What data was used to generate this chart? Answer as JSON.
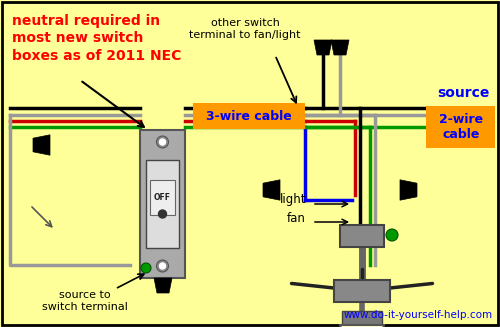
{
  "bg_color": "#FFFF99",
  "title_text": "neutral required in\nmost new switch\nboxes as of 2011 NEC",
  "title_color": "#FF0000",
  "source_color": "#0000FF",
  "label_3wire": "3-wire cable",
  "label_2wire": "2-wire\ncable",
  "orange_color": "#FF9900",
  "wire_black": "#000000",
  "wire_red": "#CC0000",
  "wire_green": "#009900",
  "wire_gray": "#999999",
  "wire_blue": "#0000EE",
  "website": "www.do-it-yourself-help.com",
  "other_switch_text": "other switch\nterminal to fan/light",
  "source_to_switch_text": "source to\nswitch terminal",
  "light_label": "light",
  "fan_label": "fan",
  "source_label": "source"
}
